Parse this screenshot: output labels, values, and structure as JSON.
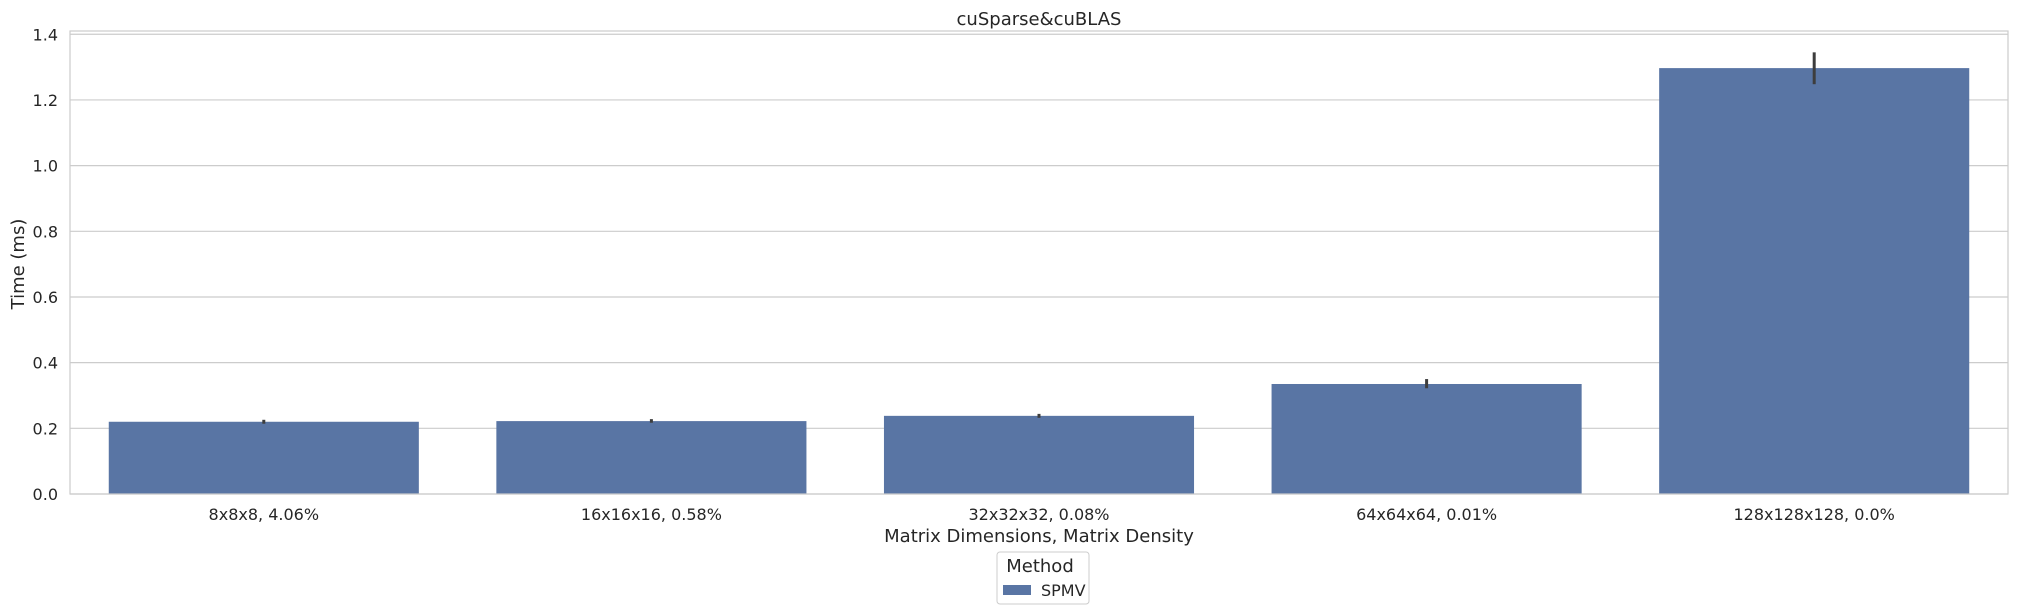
{
  "chart_data": {
    "type": "bar",
    "title": "cuSparse&cuBLAS",
    "xlabel": "Matrix Dimensions, Matrix Density",
    "ylabel": "Time (ms)",
    "categories": [
      "8x8x8, 4.06%",
      "16x16x16, 0.58%",
      "32x32x32, 0.08%",
      "64x64x64, 0.01%",
      "128x128x128, 0.0%"
    ],
    "series": [
      {
        "name": "SPMV",
        "values": [
          0.22,
          0.222,
          0.238,
          0.335,
          1.297
        ],
        "error_low": [
          0.214,
          0.217,
          0.232,
          0.322,
          1.248
        ],
        "error_high": [
          0.226,
          0.228,
          0.244,
          0.35,
          1.345
        ],
        "color": "#5975a4"
      }
    ],
    "ylim": [
      0,
      1.41
    ],
    "yticks": [
      "0.0",
      "0.2",
      "0.4",
      "0.6",
      "0.8",
      "1.0",
      "1.2",
      "1.4"
    ],
    "ytick_values": [
      0,
      0.2,
      0.4,
      0.6,
      0.8,
      1.0,
      1.2,
      1.4
    ],
    "grid": true,
    "legend": {
      "title": "Method",
      "placement": "bottom-center"
    },
    "colors": {
      "bar": "#5975a4",
      "grid": "#cccccc",
      "errorbar": "#3d3d3d",
      "frame": "#cccccc"
    }
  }
}
